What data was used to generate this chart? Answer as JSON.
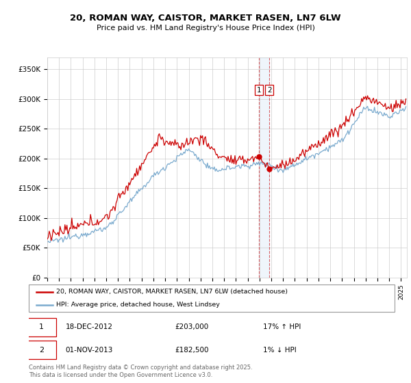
{
  "title": "20, ROMAN WAY, CAISTOR, MARKET RASEN, LN7 6LW",
  "subtitle": "Price paid vs. HM Land Registry's House Price Index (HPI)",
  "ylabel_ticks": [
    "£0",
    "£50K",
    "£100K",
    "£150K",
    "£200K",
    "£250K",
    "£300K",
    "£350K"
  ],
  "ytick_vals": [
    0,
    50000,
    100000,
    150000,
    200000,
    250000,
    300000,
    350000
  ],
  "ylim": [
    0,
    370000
  ],
  "xlim_start": 1995.0,
  "xlim_end": 2025.5,
  "sale1_x": 2012.96,
  "sale1_y": 203000,
  "sale1_label": "1",
  "sale2_x": 2013.83,
  "sale2_y": 182500,
  "sale2_label": "2",
  "red_line_color": "#cc0000",
  "blue_line_color": "#7aaace",
  "legend_red_label": "20, ROMAN WAY, CAISTOR, MARKET RASEN, LN7 6LW (detached house)",
  "legend_blue_label": "HPI: Average price, detached house, West Lindsey",
  "annotation1_date": "18-DEC-2012",
  "annotation1_price": "£203,000",
  "annotation1_hpi": "17% ↑ HPI",
  "annotation2_date": "01-NOV-2013",
  "annotation2_price": "£182,500",
  "annotation2_hpi": "1% ↓ HPI",
  "footer": "Contains HM Land Registry data © Crown copyright and database right 2025.\nThis data is licensed under the Open Government Licence v3.0.",
  "grid_color": "#cccccc",
  "background_color": "#ffffff",
  "span_color": "#aaccee",
  "vline_color": "#cc0000"
}
